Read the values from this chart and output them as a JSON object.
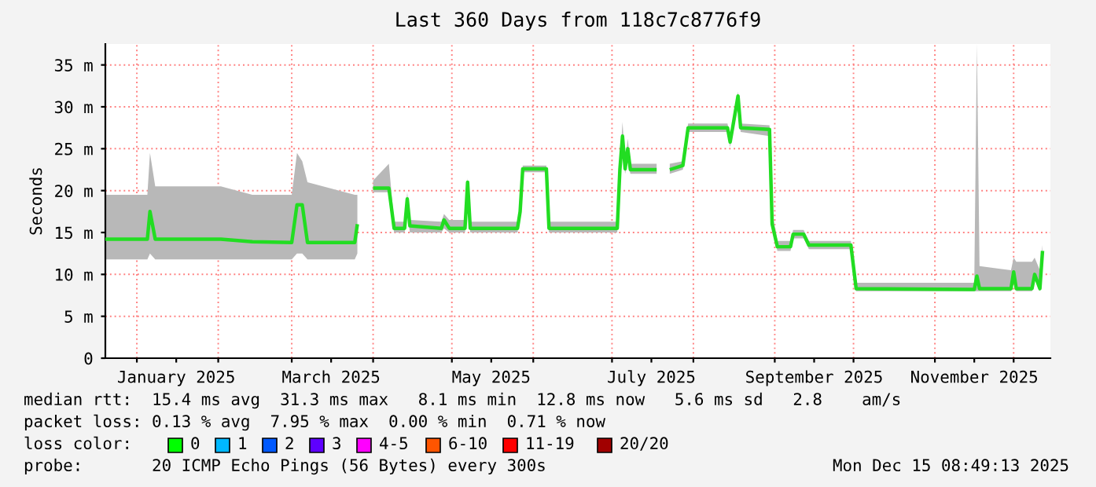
{
  "chart_data": {
    "type": "line",
    "title": "Last 360 Days from 118c7c8776f9",
    "ylabel": "Seconds",
    "x": [
      "2024-12-20",
      "2025-01-05",
      "2025-01-06",
      "2025-01-08",
      "2025-02-02",
      "2025-02-14",
      "2025-03-01",
      "2025-03-03",
      "2025-03-05",
      "2025-03-07",
      "2025-03-25",
      "2025-03-26",
      "2025-03-30",
      "2025-04-01",
      "2025-04-07",
      "2025-04-09",
      "2025-04-13",
      "2025-04-14",
      "2025-04-15",
      "2025-04-27",
      "2025-04-28",
      "2025-04-30",
      "2025-05-06",
      "2025-05-07",
      "2025-05-08",
      "2025-05-26",
      "2025-05-27",
      "2025-05-28",
      "2025-06-06",
      "2025-06-07",
      "2025-07-03",
      "2025-07-04",
      "2025-07-05",
      "2025-07-06",
      "2025-07-07",
      "2025-07-08",
      "2025-07-18",
      "2025-07-21",
      "2025-07-23",
      "2025-07-28",
      "2025-07-30",
      "2025-08-14",
      "2025-08-15",
      "2025-08-16",
      "2025-08-18",
      "2025-08-19",
      "2025-08-30",
      "2025-08-31",
      "2025-09-02",
      "2025-09-07",
      "2025-09-08",
      "2025-09-12",
      "2025-09-14",
      "2025-09-30",
      "2025-10-02",
      "2025-11-16",
      "2025-11-17",
      "2025-11-18",
      "2025-11-30",
      "2025-12-01",
      "2025-12-02",
      "2025-12-08",
      "2025-12-09",
      "2025-12-11",
      "2025-12-12"
    ],
    "series": [
      {
        "color": "#22dd22",
        "values": [
          14.2,
          14.2,
          17.5,
          14.2,
          14.2,
          13.9,
          13.8,
          18.3,
          18.3,
          13.8,
          13.8,
          16,
          null,
          20.3,
          20.3,
          15.5,
          15.5,
          19,
          15.8,
          15.5,
          16.5,
          15.5,
          15.5,
          21,
          15.5,
          15.5,
          17.5,
          22.6,
          22.6,
          15.5,
          15.5,
          22.5,
          26.5,
          22.6,
          25,
          22.5,
          22.5,
          null,
          22.5,
          23,
          27.5,
          27.5,
          25.8,
          27.6,
          31.3,
          27.5,
          27.3,
          16,
          13.3,
          13.3,
          14.8,
          14.8,
          13.5,
          13.5,
          8.3,
          8.2,
          9.8,
          8.3,
          8.3,
          10.3,
          8.3,
          8.3,
          10,
          8.3,
          12.8
        ],
        "lower": [
          11.8,
          11.8,
          12.5,
          11.8,
          11.8,
          11.8,
          11.8,
          12.5,
          12.5,
          11.8,
          11.8,
          12.5,
          null,
          19.8,
          19.8,
          15,
          15,
          17.5,
          15,
          15,
          15.5,
          15,
          15,
          19.5,
          15,
          15,
          17,
          22.2,
          22.2,
          15,
          15,
          22,
          25,
          22,
          23.5,
          22,
          22,
          null,
          22,
          22.5,
          27,
          27,
          25.2,
          27,
          30,
          27,
          26.5,
          15.5,
          12.8,
          12.8,
          14.3,
          14.3,
          13,
          13,
          8,
          8,
          8,
          8,
          8,
          9.5,
          8,
          8,
          9.5,
          8,
          12.2
        ],
        "upper": [
          19.5,
          19.5,
          24.5,
          20.5,
          20.5,
          19.5,
          19.5,
          24.5,
          23.5,
          21,
          19.5,
          19.5,
          null,
          21.2,
          23.2,
          16.3,
          16.3,
          19.8,
          16.5,
          16.3,
          17.2,
          16.5,
          16.5,
          21.5,
          16.3,
          16.3,
          18,
          23,
          23,
          16.3,
          16.3,
          23,
          28.2,
          23.2,
          26.2,
          23.2,
          23.2,
          null,
          23.2,
          23.5,
          28,
          28,
          26.2,
          28.2,
          31.8,
          28,
          27.8,
          17.5,
          14,
          14,
          15.3,
          15.3,
          14,
          14,
          9,
          9,
          37.5,
          11,
          10.5,
          12,
          11.5,
          11.5,
          12,
          10.5,
          13.5
        ]
      }
    ],
    "xlim": [
      "2024-12-20",
      "2025-12-15"
    ],
    "xticks": [
      {
        "value": "2025-01-01",
        "label": null
      },
      {
        "value": "2025-01-16",
        "label": "January 2025"
      },
      {
        "value": "2025-02-01",
        "label": null
      },
      {
        "value": "2025-03-01",
        "label": null
      },
      {
        "value": "2025-03-16",
        "label": "March 2025"
      },
      {
        "value": "2025-04-01",
        "label": null
      },
      {
        "value": "2025-05-01",
        "label": null
      },
      {
        "value": "2025-05-16",
        "label": "May 2025"
      },
      {
        "value": "2025-06-01",
        "label": null
      },
      {
        "value": "2025-07-01",
        "label": null
      },
      {
        "value": "2025-07-16",
        "label": "July 2025"
      },
      {
        "value": "2025-08-01",
        "label": null
      },
      {
        "value": "2025-09-01",
        "label": null
      },
      {
        "value": "2025-09-16",
        "label": "September 2025"
      },
      {
        "value": "2025-10-01",
        "label": null
      },
      {
        "value": "2025-11-01",
        "label": null
      },
      {
        "value": "2025-11-16",
        "label": "November 2025"
      },
      {
        "value": "2025-12-01",
        "label": null
      }
    ],
    "ylim": [
      0,
      37.5
    ],
    "yticks": [
      0,
      {
        "value": 5,
        "label": "5 m"
      },
      {
        "value": 10,
        "label": "10 m"
      },
      {
        "value": 15,
        "label": "15 m"
      },
      {
        "value": 20,
        "label": "20 m"
      },
      {
        "value": 25,
        "label": "25 m"
      },
      {
        "value": 30,
        "label": "30 m"
      },
      {
        "value": 35,
        "label": "35 m"
      }
    ],
    "grid": true,
    "annotations": [
      "median rtt:  15.4 ms avg  31.3 ms max   8.1 ms min  12.8 ms now   5.6 ms sd   2.8    am/s",
      "packet loss: 0.13 % avg  7.95 % max  0.00 % min  0.71 % now",
      "loss color:",
      "0",
      "1",
      "2",
      "3",
      "4-5",
      "6-10",
      "11-19",
      "20/20",
      "probe:       20 ICMP Echo Pings (56 Bytes) every 300s",
      "Mon Dec 15 08:49:13 2025"
    ]
  }
}
